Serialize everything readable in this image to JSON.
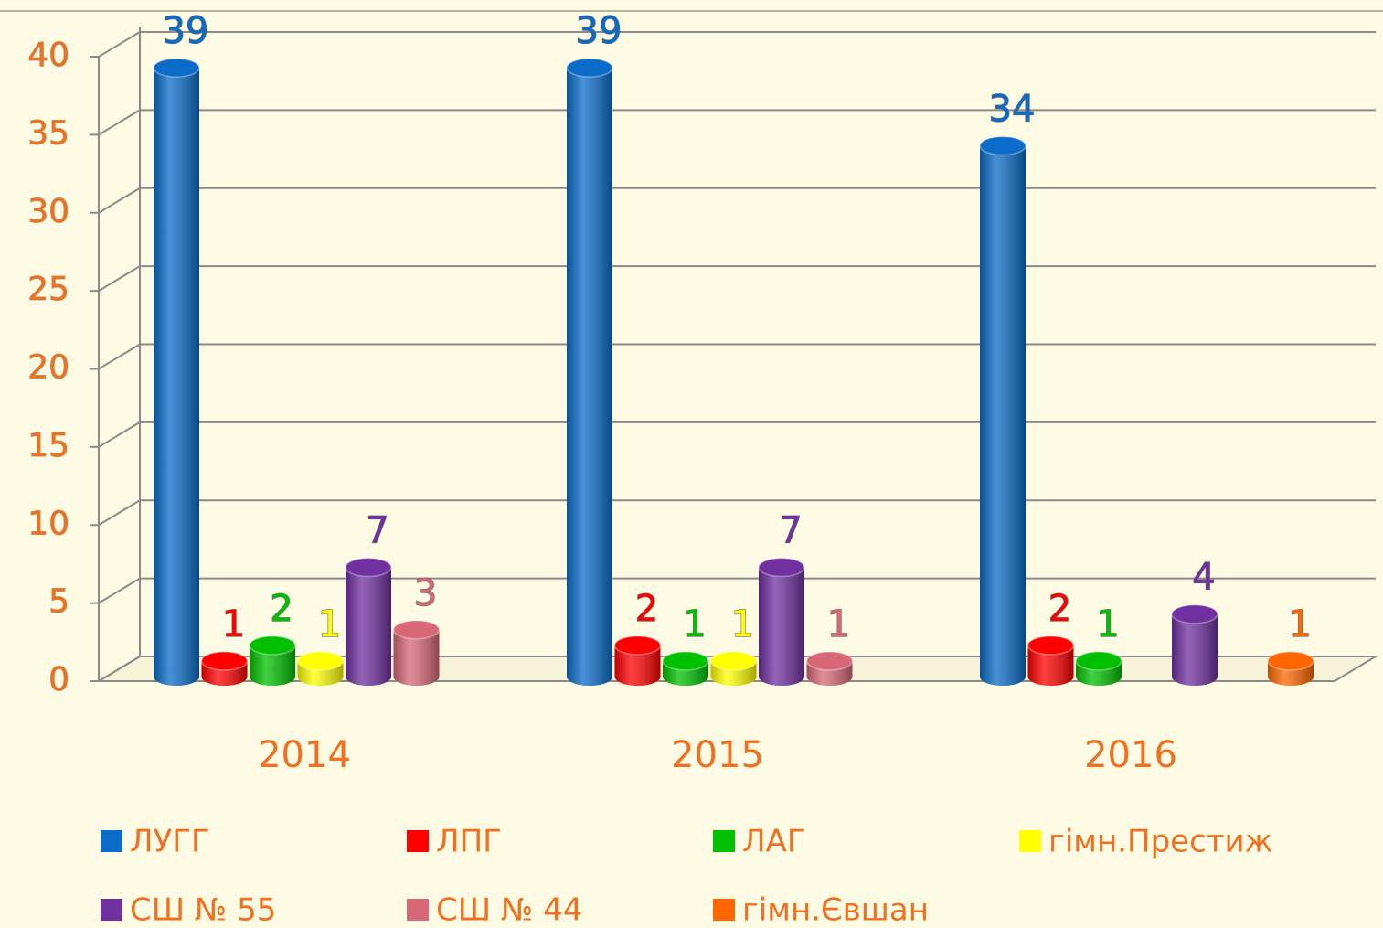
{
  "chart_data": {
    "type": "bar3d",
    "categories": [
      "2014",
      "2015",
      "2016"
    ],
    "series": [
      {
        "name": "ЛУГГ",
        "color": "#0a6cc8",
        "values": [
          39,
          39,
          34
        ]
      },
      {
        "name": "ЛПГ",
        "color": "#ff0000",
        "values": [
          1,
          2,
          2
        ]
      },
      {
        "name": "ЛАГ",
        "color": "#00c000",
        "values": [
          2,
          1,
          1
        ]
      },
      {
        "name": "гімн.Престиж",
        "color": "#ffff00",
        "values": [
          1,
          1,
          null
        ]
      },
      {
        "name": "СШ № 55",
        "color": "#7030a0",
        "values": [
          7,
          7,
          4
        ]
      },
      {
        "name": "СШ № 44",
        "color": "#d86878",
        "values": [
          3,
          1,
          null
        ]
      },
      {
        "name": "гімн.Євшан",
        "color": "#ff6600",
        "values": [
          null,
          null,
          1
        ]
      }
    ],
    "ylim": [
      0,
      40
    ],
    "yticks": [
      0,
      5,
      10,
      15,
      20,
      25,
      30,
      35,
      40
    ],
    "grid": true,
    "data_labels": true,
    "legend": "bottom"
  }
}
